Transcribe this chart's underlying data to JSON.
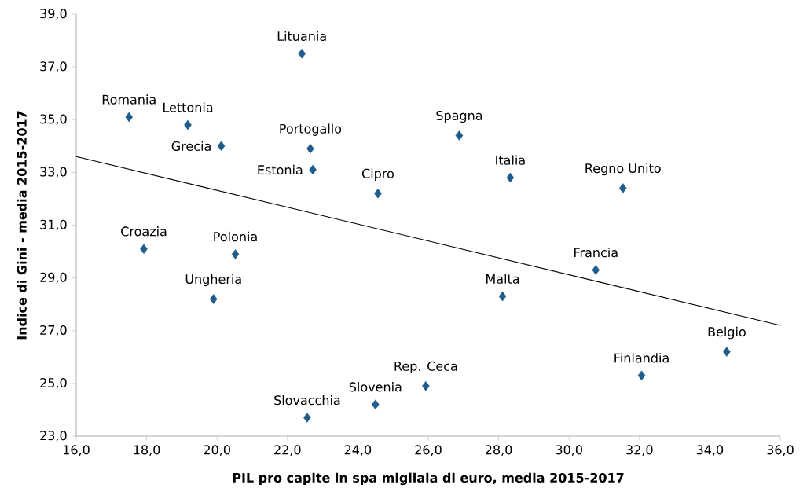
{
  "chart_data": {
    "type": "scatter",
    "xlabel": "PIL pro capite in spa migliaia di euro, media 2015-2017",
    "ylabel": "Indice di Gini - media  2015-2017",
    "x": [
      17.5,
      19.17,
      20.12,
      22.41,
      22.65,
      22.72,
      24.57,
      26.88,
      28.33,
      31.53,
      17.92,
      20.52,
      19.9,
      30.76,
      28.11,
      34.48,
      32.06,
      25.93,
      24.5,
      22.56
    ],
    "series": [
      {
        "color": "#1f5c8b",
        "marker": "diamond",
        "values": [
          35.1,
          34.8,
          34.0,
          37.5,
          33.9,
          33.1,
          32.2,
          34.4,
          32.8,
          32.4,
          30.1,
          29.9,
          28.2,
          29.3,
          28.3,
          26.2,
          25.3,
          24.9,
          24.2,
          23.7
        ]
      },
      {
        "type": "line",
        "color": "#000000",
        "x": [
          16,
          36
        ],
        "values": [
          33.6,
          27.2
        ]
      }
    ],
    "annotations": [
      {
        "text": "Romania",
        "x": 17.5,
        "y": 35.1
      },
      {
        "text": "Lettonia",
        "x": 19.17,
        "y": 34.8
      },
      {
        "text": "Grecia",
        "x": 20.12,
        "y": 34.0
      },
      {
        "text": "Lituania",
        "x": 22.41,
        "y": 37.5
      },
      {
        "text": "Portogallo",
        "x": 22.65,
        "y": 33.9
      },
      {
        "text": "Estonia",
        "x": 22.72,
        "y": 33.1
      },
      {
        "text": "Cipro",
        "x": 24.57,
        "y": 32.2
      },
      {
        "text": "Spagna",
        "x": 26.88,
        "y": 34.4
      },
      {
        "text": "Italia",
        "x": 28.33,
        "y": 32.8
      },
      {
        "text": "Regno Unito",
        "x": 31.53,
        "y": 32.4
      },
      {
        "text": "Croazia",
        "x": 17.92,
        "y": 30.1
      },
      {
        "text": "Polonia",
        "x": 20.52,
        "y": 29.9
      },
      {
        "text": "Ungheria",
        "x": 19.9,
        "y": 28.2
      },
      {
        "text": "Francia",
        "x": 30.76,
        "y": 29.3
      },
      {
        "text": "Malta",
        "x": 28.11,
        "y": 28.3
      },
      {
        "text": "Belgio",
        "x": 34.48,
        "y": 26.2
      },
      {
        "text": "Finlandia",
        "x": 32.06,
        "y": 25.3
      },
      {
        "text": "Rep. Ceca",
        "x": 25.93,
        "y": 24.9
      },
      {
        "text": "Slovenia",
        "x": 24.5,
        "y": 24.2
      },
      {
        "text": "Slovacchia",
        "x": 22.56,
        "y": 23.7
      }
    ],
    "xlim": [
      16,
      36
    ],
    "ylim": [
      23,
      39
    ],
    "xticks": [
      {
        "value": 16,
        "label": "16,0"
      },
      {
        "value": 18,
        "label": "18,0"
      },
      {
        "value": 20,
        "label": "20,0"
      },
      {
        "value": 22,
        "label": "22,0"
      },
      {
        "value": 24,
        "label": "24,0"
      },
      {
        "value": 26,
        "label": "26,0"
      },
      {
        "value": 28,
        "label": "28,0"
      },
      {
        "value": 30,
        "label": "30,0"
      },
      {
        "value": 32,
        "label": "32,0"
      },
      {
        "value": 34,
        "label": "34,0"
      },
      {
        "value": 36,
        "label": "36,0"
      }
    ],
    "yticks": [
      {
        "value": 23,
        "label": "23,0"
      },
      {
        "value": 25,
        "label": "25,0"
      },
      {
        "value": 27,
        "label": "27,0"
      },
      {
        "value": 29,
        "label": "29,0"
      },
      {
        "value": 31,
        "label": "31,0"
      },
      {
        "value": 33,
        "label": "33,0"
      },
      {
        "value": 35,
        "label": "35,0"
      },
      {
        "value": 37,
        "label": "37,0"
      },
      {
        "value": 39,
        "label": "39,0"
      }
    ],
    "grid": false
  }
}
